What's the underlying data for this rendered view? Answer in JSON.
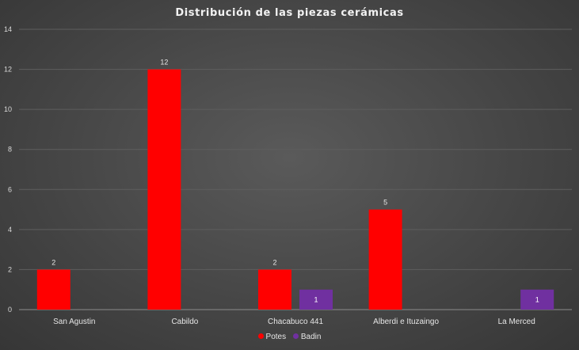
{
  "chart_data": {
    "type": "bar",
    "title": "Distribución de las piezas cerámicas",
    "categories": [
      "San Agustin",
      "Cabildo",
      "Chacabuco 441",
      "Alberdi e Ituzaingo",
      "La Merced"
    ],
    "series": [
      {
        "name": "Potes",
        "color": "#ff0000",
        "values": [
          2,
          12,
          2,
          5,
          null
        ]
      },
      {
        "name": "Badin",
        "color": "#7030a0",
        "values": [
          null,
          null,
          1,
          null,
          1
        ]
      }
    ],
    "ylim": [
      0,
      14
    ],
    "yticks": [
      0,
      2,
      4,
      6,
      8,
      10,
      12,
      14
    ],
    "grid": true,
    "legend_position": "bottom",
    "data_labels": true
  }
}
